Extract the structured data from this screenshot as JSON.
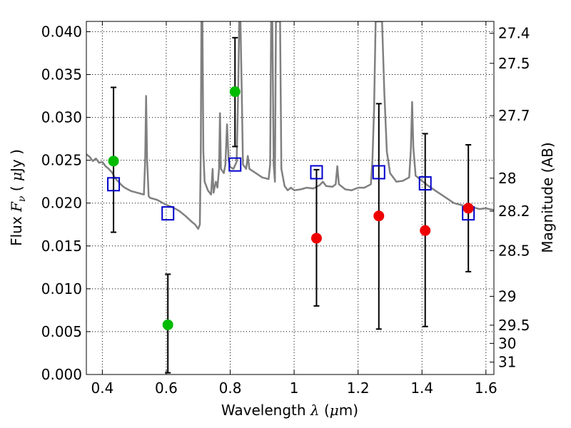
{
  "chart_data": {
    "type": "scatter",
    "xlabel": {
      "main": "Wavelength",
      "sym": "λ",
      "unit_open": " (",
      "unit_mu": "μ",
      "unit_close": "m)"
    },
    "ylabel": {
      "main": "Flux",
      "sym": "F",
      "sub": "ν",
      "unit_open": " ( ",
      "unit_mu": "μ",
      "unit_close": "Jy )"
    },
    "y2label": "Magnitude (AB)",
    "xlim": [
      0.35,
      1.625
    ],
    "ylim": [
      0.0,
      0.0412
    ],
    "grid": true,
    "x_ticks": [
      {
        "v": 0.4,
        "t": "0.4"
      },
      {
        "v": 0.6,
        "t": "0.6"
      },
      {
        "v": 0.8,
        "t": "0.8"
      },
      {
        "v": 1.0,
        "t": "1"
      },
      {
        "v": 1.2,
        "t": "1.2"
      },
      {
        "v": 1.4,
        "t": "1.4"
      },
      {
        "v": 1.6,
        "t": "1.6"
      }
    ],
    "y_ticks": [
      {
        "v": 0.0,
        "t": "0.000"
      },
      {
        "v": 0.005,
        "t": "0.005"
      },
      {
        "v": 0.01,
        "t": "0.010"
      },
      {
        "v": 0.015,
        "t": "0.015"
      },
      {
        "v": 0.02,
        "t": "0.020"
      },
      {
        "v": 0.025,
        "t": "0.025"
      },
      {
        "v": 0.03,
        "t": "0.030"
      },
      {
        "v": 0.035,
        "t": "0.035"
      },
      {
        "v": 0.04,
        "t": "0.040"
      }
    ],
    "y2_ticks": [
      "27.4",
      "27.5",
      "27.7",
      "28",
      "28.2",
      "28.5",
      "29",
      "29.5",
      "30",
      "31"
    ],
    "model_spectrum": {
      "color": "#808080",
      "points": [
        [
          0.35,
          0.0257
        ],
        [
          0.36,
          0.0254
        ],
        [
          0.37,
          0.0249
        ],
        [
          0.38,
          0.0252
        ],
        [
          0.39,
          0.0247
        ],
        [
          0.4,
          0.0248
        ],
        [
          0.41,
          0.0243
        ],
        [
          0.42,
          0.024
        ],
        [
          0.43,
          0.0236
        ],
        [
          0.44,
          0.0229
        ],
        [
          0.45,
          0.0225
        ],
        [
          0.46,
          0.0221
        ],
        [
          0.47,
          0.0218
        ],
        [
          0.48,
          0.0216
        ],
        [
          0.49,
          0.0214
        ],
        [
          0.5,
          0.0213
        ],
        [
          0.51,
          0.0212
        ],
        [
          0.52,
          0.0211
        ],
        [
          0.53,
          0.021
        ],
        [
          0.534,
          0.025
        ],
        [
          0.537,
          0.0325
        ],
        [
          0.54,
          0.025
        ],
        [
          0.545,
          0.0208
        ],
        [
          0.55,
          0.0206
        ],
        [
          0.57,
          0.0204
        ],
        [
          0.59,
          0.02
        ],
        [
          0.6,
          0.0198
        ],
        [
          0.62,
          0.0195
        ],
        [
          0.64,
          0.0191
        ],
        [
          0.66,
          0.0185
        ],
        [
          0.68,
          0.0178
        ],
        [
          0.69,
          0.0175
        ],
        [
          0.7,
          0.017
        ],
        [
          0.705,
          0.0175
        ],
        [
          0.708,
          0.026
        ],
        [
          0.71,
          0.0412
        ],
        [
          0.713,
          0.0412
        ],
        [
          0.716,
          0.026
        ],
        [
          0.72,
          0.0225
        ],
        [
          0.73,
          0.0215
        ],
        [
          0.74,
          0.021
        ],
        [
          0.745,
          0.024
        ],
        [
          0.748,
          0.0212
        ],
        [
          0.755,
          0.0225
        ],
        [
          0.76,
          0.0218
        ],
        [
          0.765,
          0.024
        ],
        [
          0.768,
          0.0305
        ],
        [
          0.771,
          0.024
        ],
        [
          0.78,
          0.0235
        ],
        [
          0.785,
          0.0245
        ],
        [
          0.79,
          0.0292
        ],
        [
          0.795,
          0.025
        ],
        [
          0.8,
          0.0242
        ],
        [
          0.81,
          0.024
        ],
        [
          0.82,
          0.0248
        ],
        [
          0.825,
          0.033
        ],
        [
          0.828,
          0.0412
        ],
        [
          0.832,
          0.0412
        ],
        [
          0.836,
          0.033
        ],
        [
          0.84,
          0.0245
        ],
        [
          0.85,
          0.024
        ],
        [
          0.855,
          0.0255
        ],
        [
          0.86,
          0.024
        ],
        [
          0.88,
          0.0235
        ],
        [
          0.9,
          0.023
        ],
        [
          0.92,
          0.0228
        ],
        [
          0.925,
          0.0245
        ],
        [
          0.928,
          0.0412
        ],
        [
          0.932,
          0.0412
        ],
        [
          0.936,
          0.0245
        ],
        [
          0.94,
          0.0225
        ],
        [
          0.943,
          0.0412
        ],
        [
          0.947,
          0.0412
        ],
        [
          0.952,
          0.0412
        ],
        [
          0.956,
          0.0412
        ],
        [
          0.96,
          0.024
        ],
        [
          0.97,
          0.022
        ],
        [
          0.98,
          0.0215
        ],
        [
          0.99,
          0.0218
        ],
        [
          1.0,
          0.0215
        ],
        [
          1.02,
          0.0216
        ],
        [
          1.04,
          0.0218
        ],
        [
          1.06,
          0.0217
        ],
        [
          1.08,
          0.0221
        ],
        [
          1.09,
          0.0225
        ],
        [
          1.1,
          0.022
        ],
        [
          1.12,
          0.0219
        ],
        [
          1.13,
          0.0222
        ],
        [
          1.135,
          0.0243
        ],
        [
          1.14,
          0.0222
        ],
        [
          1.16,
          0.0216
        ],
        [
          1.18,
          0.0215
        ],
        [
          1.2,
          0.0218
        ],
        [
          1.22,
          0.0218
        ],
        [
          1.24,
          0.0222
        ],
        [
          1.245,
          0.025
        ],
        [
          1.25,
          0.031
        ],
        [
          1.255,
          0.0412
        ],
        [
          1.262,
          0.0412
        ],
        [
          1.268,
          0.0412
        ],
        [
          1.275,
          0.0412
        ],
        [
          1.282,
          0.033
        ],
        [
          1.29,
          0.026
        ],
        [
          1.3,
          0.0235
        ],
        [
          1.32,
          0.0225
        ],
        [
          1.34,
          0.0226
        ],
        [
          1.36,
          0.023
        ],
        [
          1.365,
          0.0262
        ],
        [
          1.369,
          0.0318
        ],
        [
          1.373,
          0.0265
        ],
        [
          1.38,
          0.0232
        ],
        [
          1.4,
          0.0226
        ],
        [
          1.42,
          0.022
        ],
        [
          1.44,
          0.0215
        ],
        [
          1.46,
          0.021
        ],
        [
          1.48,
          0.0205
        ],
        [
          1.5,
          0.02
        ],
        [
          1.52,
          0.0198
        ],
        [
          1.54,
          0.0196
        ],
        [
          1.56,
          0.0195
        ],
        [
          1.58,
          0.0193
        ],
        [
          1.6,
          0.0194
        ],
        [
          1.61,
          0.0193
        ],
        [
          1.625,
          0.0192
        ]
      ]
    },
    "series": [
      {
        "marker": "open-square",
        "color": "#0000cc",
        "points": [
          {
            "x": 0.435,
            "y": 0.0222
          },
          {
            "x": 0.605,
            "y": 0.0188
          },
          {
            "x": 0.815,
            "y": 0.0245
          },
          {
            "x": 1.07,
            "y": 0.0236
          },
          {
            "x": 1.265,
            "y": 0.0236
          },
          {
            "x": 1.41,
            "y": 0.0223
          },
          {
            "x": 1.545,
            "y": 0.0188
          }
        ]
      },
      {
        "marker": "filled-circle",
        "color": "#00bb00",
        "points": [
          {
            "x": 0.435,
            "y": 0.0249,
            "err_lo": 0.0166,
            "err_hi": 0.0335
          },
          {
            "x": 0.605,
            "y": 0.0058,
            "err_lo": 0.0002,
            "err_hi": 0.0117
          },
          {
            "x": 0.815,
            "y": 0.033,
            "err_lo": 0.0266,
            "err_hi": 0.0393
          }
        ]
      },
      {
        "marker": "filled-circle",
        "color": "#ee0000",
        "points": [
          {
            "x": 1.07,
            "y": 0.0159,
            "err_lo": 0.008,
            "err_hi": 0.0239
          },
          {
            "x": 1.265,
            "y": 0.0185,
            "err_lo": 0.0053,
            "err_hi": 0.0316
          },
          {
            "x": 1.41,
            "y": 0.0168,
            "err_lo": 0.0056,
            "err_hi": 0.0281
          },
          {
            "x": 1.545,
            "y": 0.0194,
            "err_lo": 0.012,
            "err_hi": 0.0268
          }
        ]
      }
    ]
  }
}
